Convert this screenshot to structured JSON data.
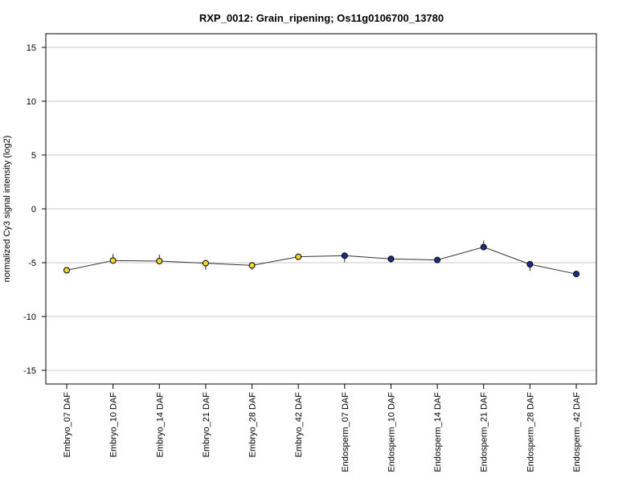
{
  "chart_data": {
    "type": "line",
    "title": "RXP_0012: Grain_ripening; Os11g0106700_13780",
    "xlabel": "",
    "ylabel": "normalized Cy3 signal intensity (log2)",
    "ylim": [
      -16,
      16
    ],
    "yticks": [
      15,
      10,
      5,
      0,
      -5,
      -10,
      -15
    ],
    "grid": true,
    "legend": "none",
    "categories": [
      "Embryo_07 DAF",
      "Embryo_10 DAF",
      "Embryo_14 DAF",
      "Embryo_21 DAF",
      "Embryo_28 DAF",
      "Embryo_42 DAF",
      "Endosperm_07 DAF",
      "Endosperm_10 DAF",
      "Endosperm_14 DAF",
      "Endosperm_21 DAF",
      "Endosperm_28 DAF",
      "Endosperm_42 DAF"
    ],
    "series": [
      {
        "values": [
          -5.7,
          -4.8,
          -4.85,
          -5.05,
          -5.25,
          -4.45,
          -4.35,
          -4.65,
          -4.75,
          -3.55,
          -5.15,
          -6.05
        ],
        "error_low": [
          -5.9,
          -5.05,
          -5.1,
          -5.65,
          -5.65,
          -4.75,
          -4.95,
          -5.0,
          -4.95,
          -3.75,
          -5.75,
          -6.2
        ],
        "error_high": [
          -5.45,
          -4.2,
          -4.25,
          -4.75,
          -4.95,
          -4.2,
          -4.2,
          -4.5,
          -4.65,
          -2.95,
          -4.85,
          -5.9
        ],
        "colors": [
          "#f0d830",
          "#f0d830",
          "#f0d830",
          "#f0d830",
          "#f0d830",
          "#f0d830",
          "#1a2f8c",
          "#1a2f8c",
          "#1a2f8c",
          "#1a2f8c",
          "#1a2f8c",
          "#1a2f8c"
        ]
      }
    ],
    "line_color": "#333333",
    "gridline_color": "#c8c8c8"
  }
}
